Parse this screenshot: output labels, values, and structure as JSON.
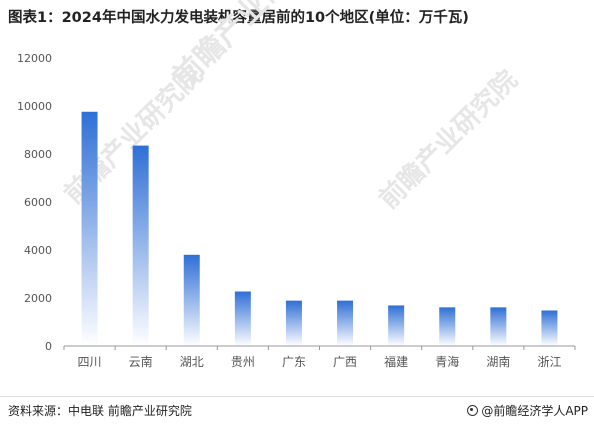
{
  "title": "图表1：2024年中国水力发电装机容量居前的10个地区(单位：万千瓦)",
  "source": "资料来源：中电联 前瞻产业研究院",
  "brand": "@前瞻经济学人APP",
  "watermark": "前瞻产业研究院",
  "colors": {
    "bar_top": "#2f6fd6",
    "bar_bottom": "#ffffff",
    "axis": "#999999",
    "text": "#555555"
  },
  "chart_data": {
    "type": "bar",
    "title": "图表1：2024年中国水力发电装机容量居前的10个地区(单位：万千瓦)",
    "categories": [
      "四川",
      "云南",
      "湖北",
      "贵州",
      "广东",
      "广西",
      "福建",
      "青海",
      "湖南",
      "浙江"
    ],
    "values": [
      9760,
      8350,
      3800,
      2270,
      1890,
      1890,
      1690,
      1610,
      1610,
      1480
    ],
    "ylim": [
      0,
      12000
    ],
    "yticks": [
      "0",
      "2000",
      "4000",
      "6000",
      "8000",
      "10000",
      "12000"
    ],
    "grid": false,
    "legend": "none"
  }
}
